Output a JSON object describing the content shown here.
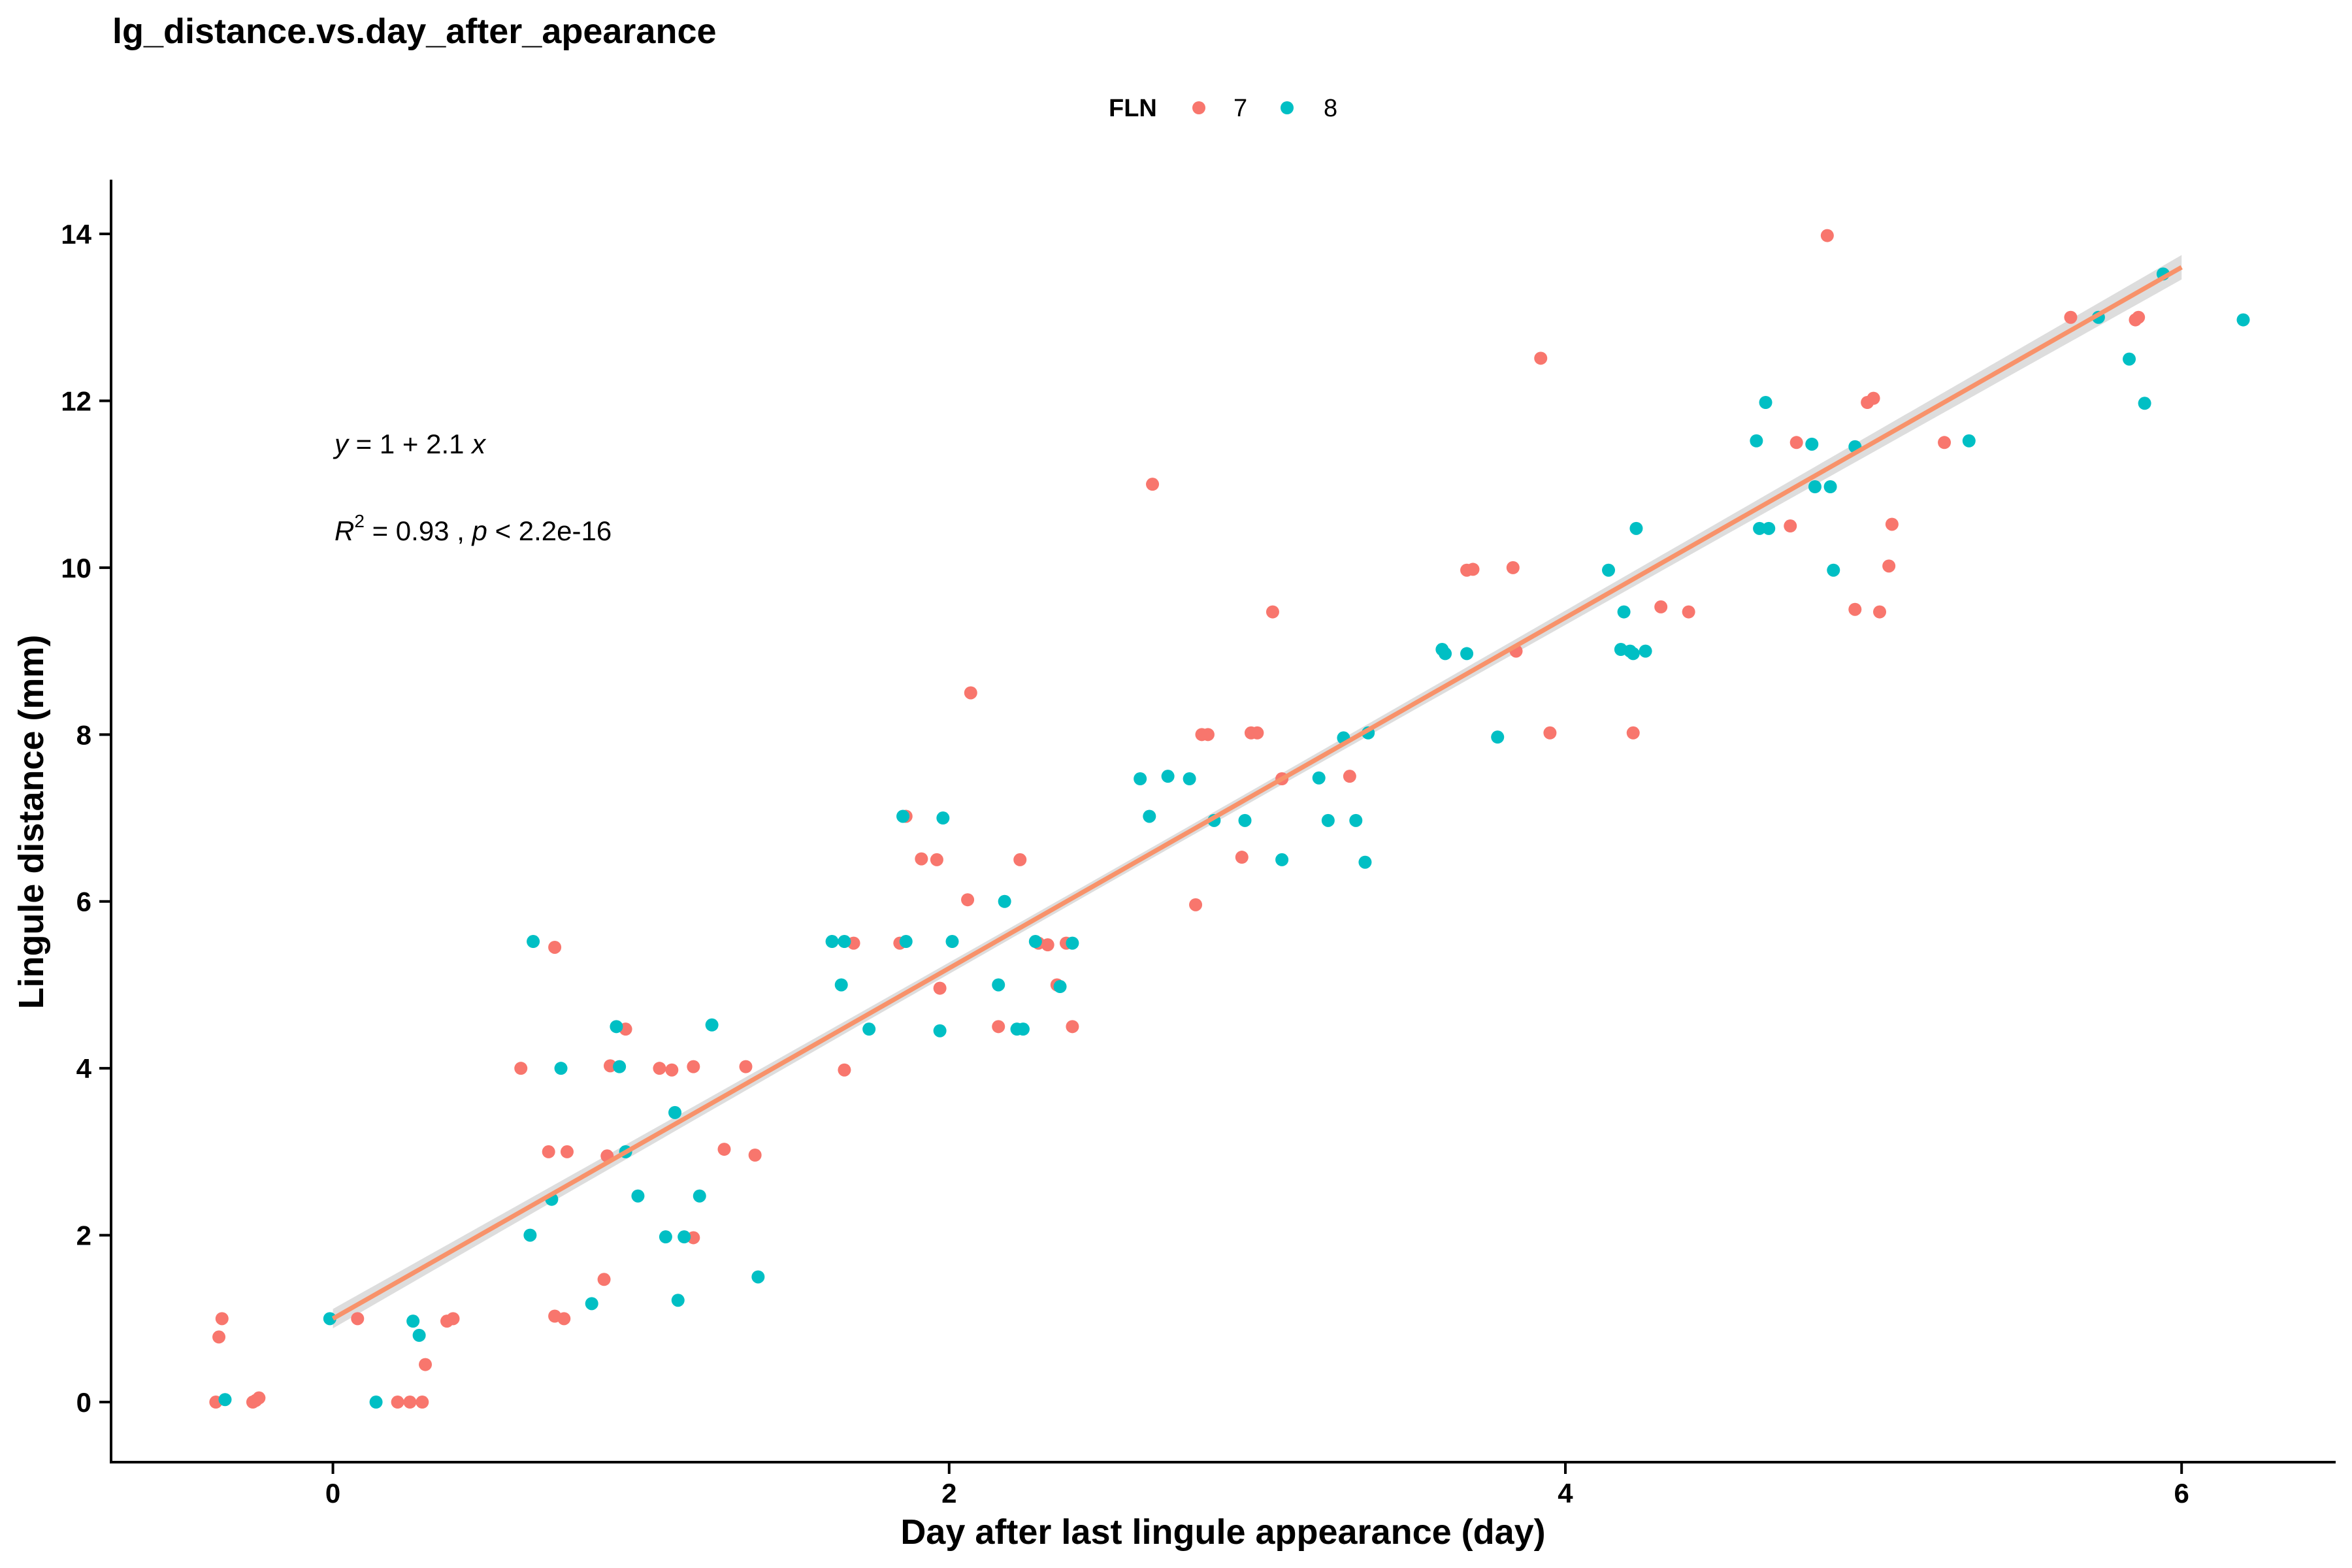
{
  "chart_data": {
    "type": "scatter",
    "title": "lg_distance.vs.day_after_apearance",
    "xlabel": "Day after last lingule appearance (day)",
    "ylabel": "Lingule distance (mm)",
    "xlim": [
      -0.72,
      6.5
    ],
    "ylim": [
      -0.72,
      14.65
    ],
    "x_ticks": [
      0,
      2,
      4,
      6
    ],
    "y_ticks": [
      0,
      2,
      4,
      6,
      8,
      10,
      12,
      14
    ],
    "grid": false,
    "legend": {
      "title": "FLN",
      "position": "top",
      "entries": [
        "7",
        "8"
      ]
    },
    "annotations": {
      "equation": {
        "y": "y",
        "rest": " = 1 + 2.1 ",
        "x": "x"
      },
      "stats": {
        "r": "R",
        "sup": "2",
        "mid": " = 0.93 , ",
        "p": "p",
        "rest": " < 2.2e-16"
      }
    },
    "fit": {
      "intercept": 1.0,
      "slope": 2.1,
      "x_range": [
        0,
        6
      ],
      "color": "#F8926A",
      "band_color": "#D9D9D9"
    },
    "series": [
      {
        "name": "7",
        "color": "#F8766D",
        "points": [
          [
            -0.38,
            0
          ],
          [
            -0.37,
            0.78
          ],
          [
            -0.36,
            1.0
          ],
          [
            -0.26,
            0
          ],
          [
            -0.25,
            0.02
          ],
          [
            -0.24,
            0.05
          ],
          [
            0.08,
            1.0
          ],
          [
            0.21,
            0
          ],
          [
            0.25,
            0
          ],
          [
            0.29,
            0
          ],
          [
            0.3,
            0.45
          ],
          [
            0.37,
            0.97
          ],
          [
            0.39,
            1.0
          ],
          [
            0.61,
            4.0
          ],
          [
            0.7,
            3.0
          ],
          [
            0.72,
            5.45
          ],
          [
            0.72,
            1.03
          ],
          [
            0.75,
            1.0
          ],
          [
            0.76,
            3.0
          ],
          [
            0.88,
            1.47
          ],
          [
            0.89,
            2.95
          ],
          [
            0.9,
            4.03
          ],
          [
            0.95,
            4.47
          ],
          [
            1.06,
            4.0
          ],
          [
            1.1,
            3.98
          ],
          [
            1.17,
            4.02
          ],
          [
            1.17,
            1.97
          ],
          [
            1.27,
            3.03
          ],
          [
            1.34,
            4.02
          ],
          [
            1.37,
            2.96
          ],
          [
            1.66,
            3.98
          ],
          [
            1.69,
            5.5
          ],
          [
            1.84,
            5.5
          ],
          [
            1.86,
            7.02
          ],
          [
            1.91,
            6.51
          ],
          [
            1.96,
            6.5
          ],
          [
            1.97,
            4.96
          ],
          [
            2.06,
            6.02
          ],
          [
            2.07,
            8.5
          ],
          [
            2.16,
            4.5
          ],
          [
            2.23,
            6.5
          ],
          [
            2.29,
            5.5
          ],
          [
            2.32,
            5.48
          ],
          [
            2.35,
            5.0
          ],
          [
            2.38,
            5.5
          ],
          [
            2.4,
            4.5
          ],
          [
            2.66,
            11.0
          ],
          [
            2.8,
            5.96
          ],
          [
            2.82,
            8.0
          ],
          [
            2.84,
            8.0
          ],
          [
            2.95,
            6.53
          ],
          [
            2.98,
            8.02
          ],
          [
            3.0,
            8.02
          ],
          [
            3.05,
            9.47
          ],
          [
            3.08,
            7.47
          ],
          [
            3.3,
            7.5
          ],
          [
            3.68,
            9.97
          ],
          [
            3.7,
            9.98
          ],
          [
            3.83,
            10.0
          ],
          [
            3.84,
            9.0
          ],
          [
            3.92,
            12.51
          ],
          [
            3.95,
            8.02
          ],
          [
            4.22,
            8.02
          ],
          [
            4.31,
            9.53
          ],
          [
            4.4,
            9.47
          ],
          [
            4.73,
            10.5
          ],
          [
            4.75,
            11.5
          ],
          [
            4.85,
            13.98
          ],
          [
            4.94,
            9.5
          ],
          [
            4.98,
            11.98
          ],
          [
            5.0,
            12.03
          ],
          [
            5.02,
            9.47
          ],
          [
            5.05,
            10.02
          ],
          [
            5.06,
            10.52
          ],
          [
            5.23,
            11.5
          ],
          [
            5.64,
            13.0
          ],
          [
            5.85,
            12.97
          ],
          [
            5.86,
            13.0
          ]
        ]
      },
      {
        "name": "8",
        "color": "#00BFC4",
        "points": [
          [
            -0.35,
            0.03
          ],
          [
            -0.01,
            1.0
          ],
          [
            0.14,
            0
          ],
          [
            0.26,
            0.97
          ],
          [
            0.28,
            0.8
          ],
          [
            0.64,
            2.0
          ],
          [
            0.65,
            5.52
          ],
          [
            0.71,
            2.43
          ],
          [
            0.74,
            4.0
          ],
          [
            0.84,
            1.18
          ],
          [
            0.92,
            4.5
          ],
          [
            0.93,
            4.02
          ],
          [
            0.95,
            3.0
          ],
          [
            0.99,
            2.47
          ],
          [
            1.08,
            1.98
          ],
          [
            1.11,
            3.47
          ],
          [
            1.12,
            1.22
          ],
          [
            1.14,
            1.98
          ],
          [
            1.19,
            2.47
          ],
          [
            1.23,
            4.52
          ],
          [
            1.38,
            1.5
          ],
          [
            1.62,
            5.52
          ],
          [
            1.65,
            5.0
          ],
          [
            1.66,
            5.52
          ],
          [
            1.74,
            4.47
          ],
          [
            1.85,
            7.02
          ],
          [
            1.86,
            5.52
          ],
          [
            1.97,
            4.45
          ],
          [
            1.98,
            7.0
          ],
          [
            2.01,
            5.52
          ],
          [
            2.16,
            5.0
          ],
          [
            2.18,
            6.0
          ],
          [
            2.22,
            4.47
          ],
          [
            2.24,
            4.47
          ],
          [
            2.28,
            5.52
          ],
          [
            2.36,
            4.98
          ],
          [
            2.4,
            5.5
          ],
          [
            2.62,
            7.47
          ],
          [
            2.65,
            7.02
          ],
          [
            2.71,
            7.5
          ],
          [
            2.78,
            7.47
          ],
          [
            2.86,
            6.97
          ],
          [
            2.96,
            6.97
          ],
          [
            3.08,
            6.5
          ],
          [
            3.2,
            7.48
          ],
          [
            3.23,
            6.97
          ],
          [
            3.28,
            7.96
          ],
          [
            3.32,
            6.97
          ],
          [
            3.35,
            6.47
          ],
          [
            3.36,
            8.02
          ],
          [
            3.6,
            9.02
          ],
          [
            3.61,
            8.97
          ],
          [
            3.68,
            8.97
          ],
          [
            3.78,
            7.97
          ],
          [
            4.14,
            9.97
          ],
          [
            4.18,
            9.02
          ],
          [
            4.19,
            9.47
          ],
          [
            4.21,
            9.0
          ],
          [
            4.22,
            8.97
          ],
          [
            4.23,
            10.47
          ],
          [
            4.26,
            9.0
          ],
          [
            4.62,
            11.52
          ],
          [
            4.63,
            10.47
          ],
          [
            4.65,
            11.98
          ],
          [
            4.66,
            10.47
          ],
          [
            4.8,
            11.48
          ],
          [
            4.81,
            10.97
          ],
          [
            4.86,
            10.97
          ],
          [
            4.87,
            9.97
          ],
          [
            4.94,
            11.45
          ],
          [
            5.31,
            11.52
          ],
          [
            5.73,
            13.0
          ],
          [
            5.83,
            12.5
          ],
          [
            5.88,
            11.97
          ],
          [
            5.94,
            13.52
          ],
          [
            6.2,
            12.97
          ]
        ]
      }
    ]
  }
}
